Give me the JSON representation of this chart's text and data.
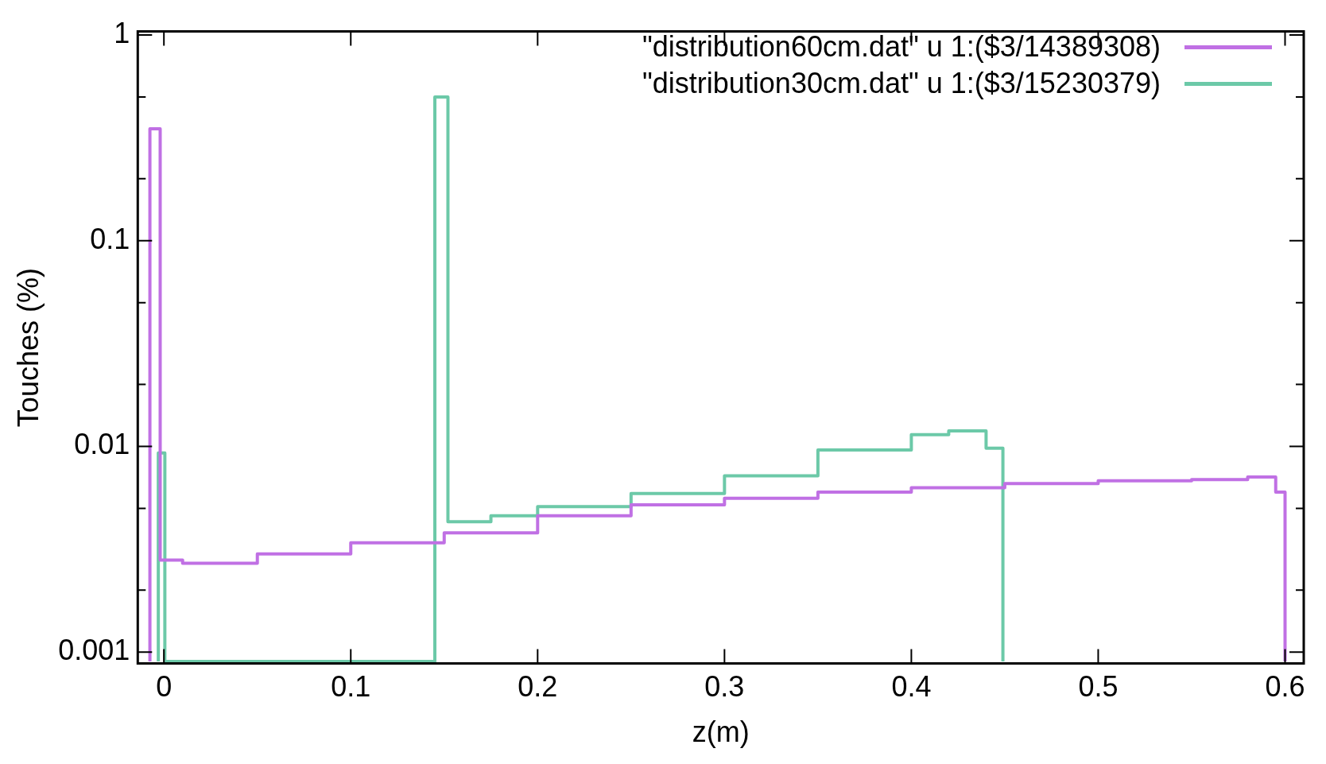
{
  "chart_data": {
    "type": "step",
    "xlabel": "z(m)",
    "ylabel": "Touches (%)",
    "log": "y",
    "grid": false,
    "legend": "top right",
    "marker": "none",
    "line_style": "solid",
    "xlim": [
      -0.014,
      0.61
    ],
    "ylim": [
      0.00088,
      1.04
    ],
    "xticks": [
      0,
      0.1,
      0.2,
      0.3,
      0.4,
      0.5,
      0.6
    ],
    "yticks": [
      0.001,
      {
        "value": 0.002,
        "label": null
      },
      {
        "value": 0.005,
        "label": null
      },
      0.01,
      {
        "value": 0.02,
        "label": null
      },
      {
        "value": 0.05,
        "label": null
      },
      0.1,
      {
        "value": 0.2,
        "label": null
      },
      {
        "value": 0.5,
        "label": null
      },
      1
    ],
    "series": [
      {
        "name": "\"distribution60cm.dat\" u 1:($3/14389308)",
        "color": "#c070e4",
        "x": [
          -0.0075,
          -0.0075,
          -0.002,
          0.01,
          0.05,
          0.1,
          0.15,
          0.2,
          0.25,
          0.3,
          0.35,
          0.4,
          0.45,
          0.5,
          0.55,
          0.58,
          0.595,
          0.6
        ],
        "values": [
          0.0009,
          0.35,
          0.0028,
          0.0027,
          0.003,
          0.0034,
          0.0038,
          0.0046,
          0.0052,
          0.0056,
          0.006,
          0.0063,
          0.0066,
          0.0068,
          0.0069,
          0.0071,
          0.006,
          0.0009
        ]
      },
      {
        "name": "\"distribution30cm.dat\" u 1:($3/15230379)",
        "color": "#6cc9a8",
        "x": [
          -0.003,
          -0.003,
          0.0005,
          0.145,
          0.152,
          0.175,
          0.2,
          0.25,
          0.3,
          0.35,
          0.4,
          0.42,
          0.44,
          0.449
        ],
        "values": [
          0.0009,
          0.0093,
          0.0009,
          0.5,
          0.0043,
          0.0046,
          0.0051,
          0.0059,
          0.0072,
          0.0096,
          0.0114,
          0.0119,
          0.0098,
          0.0009
        ]
      }
    ]
  }
}
